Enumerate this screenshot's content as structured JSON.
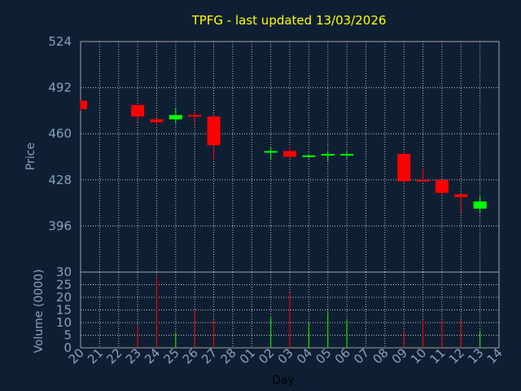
{
  "chart_data": {
    "type": "candlestick",
    "title": "TPFG - last updated 13/03/2026",
    "price_ylabel": "Price",
    "volume_ylabel": "Volume (0000)",
    "xlabel": "Day",
    "price_ylim": [
      364,
      524
    ],
    "price_ticks": [
      "524",
      "492",
      "460",
      "428",
      "396"
    ],
    "volume_ylim": [
      0,
      30
    ],
    "volume_ticks": [
      "30",
      "25",
      "20",
      "15",
      "10",
      "5",
      "0"
    ],
    "x_ticks": [
      "20",
      "21",
      "22",
      "23",
      "24",
      "25",
      "26",
      "27",
      "28",
      "01",
      "02",
      "03",
      "04",
      "05",
      "06",
      "07",
      "08",
      "09",
      "10",
      "11",
      "12",
      "13",
      "14"
    ],
    "grid": true,
    "colors": {
      "up": "#00ff00",
      "down": "#ff0000",
      "grid": "#c0c0c0",
      "background": "#0f1f33",
      "title": "#ffff00",
      "text": "#8aa0c0"
    },
    "candles": [
      {
        "day": "20",
        "open": 483,
        "high": 483,
        "low": 476,
        "close": 477,
        "volume": 0
      },
      {
        "day": "23",
        "open": 480,
        "high": 480,
        "low": 468,
        "close": 472,
        "volume": 9
      },
      {
        "day": "24",
        "open": 470,
        "high": 471,
        "low": 466,
        "close": 468,
        "volume": 28
      },
      {
        "day": "25",
        "open": 470,
        "high": 478,
        "low": 467,
        "close": 473,
        "volume": 6
      },
      {
        "day": "26",
        "open": 473,
        "high": 475,
        "low": 467,
        "close": 472,
        "volume": 15
      },
      {
        "day": "27",
        "open": 472,
        "high": 472,
        "low": 442,
        "close": 452,
        "volume": 11
      },
      {
        "day": "02",
        "open": 447,
        "high": 451,
        "low": 442,
        "close": 448,
        "volume": 12
      },
      {
        "day": "03",
        "open": 448,
        "high": 451,
        "low": 443,
        "close": 444,
        "volume": 22
      },
      {
        "day": "04",
        "open": 444,
        "high": 446,
        "low": 443,
        "close": 445,
        "volume": 10
      },
      {
        "day": "05",
        "open": 445,
        "high": 448,
        "low": 441,
        "close": 446,
        "volume": 14
      },
      {
        "day": "06",
        "open": 445,
        "high": 448,
        "low": 443,
        "close": 446,
        "volume": 11
      },
      {
        "day": "09",
        "open": 446,
        "high": 448,
        "low": 426,
        "close": 427,
        "volume": 7
      },
      {
        "day": "10",
        "open": 428,
        "high": 436,
        "low": 427,
        "close": 427,
        "volume": 11
      },
      {
        "day": "11",
        "open": 428,
        "high": 428,
        "low": 417,
        "close": 419,
        "volume": 11
      },
      {
        "day": "12",
        "open": 418,
        "high": 418,
        "low": 405,
        "close": 416,
        "volume": 11
      },
      {
        "day": "13",
        "open": 408,
        "high": 417,
        "low": 405,
        "close": 413,
        "volume": 7
      }
    ]
  }
}
